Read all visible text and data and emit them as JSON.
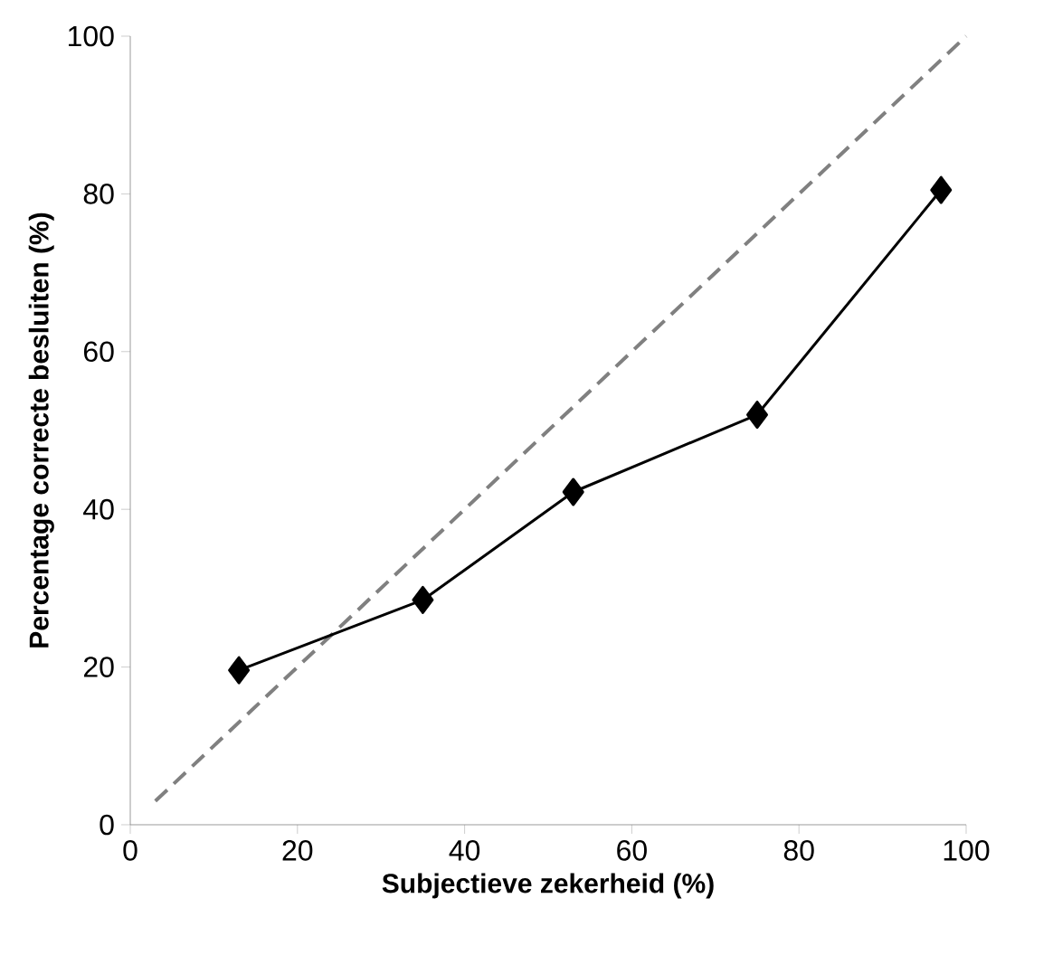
{
  "chart_data": {
    "type": "line",
    "xlabel": "Subjectieve zekerheid (%)",
    "ylabel": "Percentage correcte besluiten (%)",
    "xlim": [
      0,
      100
    ],
    "ylim": [
      0,
      100
    ],
    "xticks": [
      0,
      20,
      40,
      60,
      80,
      100
    ],
    "yticks": [
      0,
      20,
      40,
      60,
      80,
      100
    ],
    "grid": false,
    "series": [
      {
        "color": "#808080",
        "line_style": "dashed",
        "marker": "none",
        "x": [
          3,
          100
        ],
        "values": [
          3,
          100
        ]
      },
      {
        "color": "#000000",
        "line_style": "solid",
        "marker": "diamond",
        "x": [
          13,
          35,
          53,
          75,
          97
        ],
        "values": [
          19.6,
          28.5,
          42.2,
          52,
          80.5
        ]
      }
    ]
  }
}
